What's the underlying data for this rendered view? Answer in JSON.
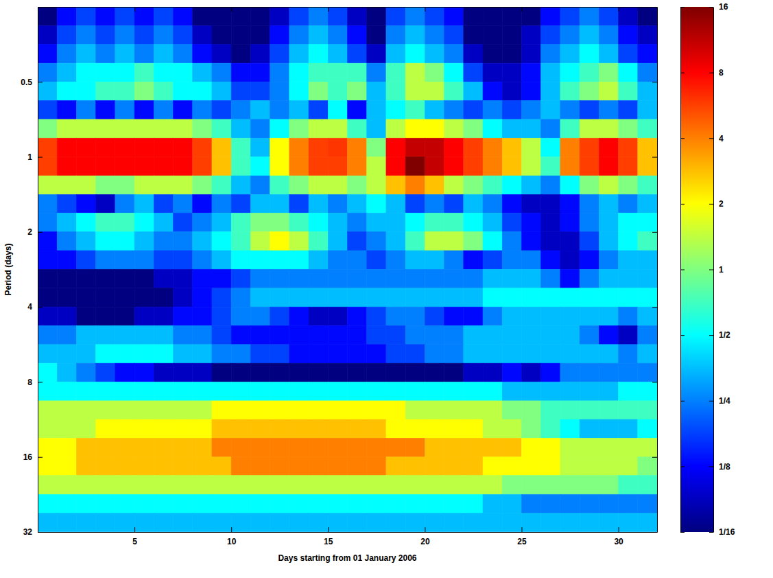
{
  "chart_data": {
    "type": "heatmap",
    "x_label": "Days starting from 01 January 2006",
    "y_label": "Period (days)",
    "log": "y",
    "xlim": [
      0,
      32
    ],
    "ylim": [
      0.25,
      32
    ],
    "xticks": [
      5,
      10,
      15,
      20,
      25,
      30
    ],
    "yticks": [
      0.5,
      1,
      2,
      4,
      8,
      16,
      32
    ],
    "x": [
      0.5,
      1.5,
      2.5,
      3.5,
      4.5,
      5.5,
      6.5,
      7.5,
      8.5,
      9.5,
      10.5,
      11.5,
      12.5,
      13.5,
      14.5,
      15.5,
      16.5,
      17.5,
      18.5,
      19.5,
      20.5,
      21.5,
      22.5,
      23.5,
      24.5,
      25.5,
      26.5,
      27.5,
      28.5,
      29.5,
      30.5,
      31.5
    ],
    "y": [
      0.273,
      0.324,
      0.386,
      0.459,
      0.545,
      0.648,
      0.771,
      0.917,
      1.09,
      1.3,
      1.54,
      1.83,
      2.18,
      2.59,
      3.08,
      3.67,
      4.36,
      5.19,
      6.17,
      7.34,
      8.72,
      10.4,
      12.3,
      14.7,
      17.4,
      20.7,
      24.7,
      29.3
    ],
    "values": [
      [
        0.06,
        0.13,
        0.18,
        0.13,
        0.18,
        0.13,
        0.18,
        0.13,
        0.06,
        0.06,
        0.06,
        0.06,
        0.09,
        0.18,
        0.25,
        0.18,
        0.09,
        0.06,
        0.18,
        0.25,
        0.18,
        0.13,
        0.06,
        0.06,
        0.06,
        0.06,
        0.13,
        0.18,
        0.25,
        0.18,
        0.09,
        0.06
      ],
      [
        0.09,
        0.18,
        0.25,
        0.18,
        0.25,
        0.18,
        0.25,
        0.18,
        0.09,
        0.06,
        0.06,
        0.06,
        0.13,
        0.25,
        0.35,
        0.25,
        0.13,
        0.06,
        0.25,
        0.35,
        0.25,
        0.18,
        0.06,
        0.06,
        0.06,
        0.09,
        0.18,
        0.25,
        0.35,
        0.25,
        0.13,
        0.09
      ],
      [
        0.13,
        0.25,
        0.35,
        0.25,
        0.35,
        0.25,
        0.35,
        0.25,
        0.13,
        0.09,
        0.06,
        0.09,
        0.18,
        0.35,
        0.5,
        0.35,
        0.18,
        0.09,
        0.35,
        0.5,
        0.35,
        0.25,
        0.09,
        0.06,
        0.06,
        0.09,
        0.25,
        0.35,
        0.5,
        0.35,
        0.18,
        0.13
      ],
      [
        0.25,
        0.35,
        0.5,
        0.5,
        0.5,
        0.7,
        0.5,
        0.5,
        0.35,
        0.25,
        0.13,
        0.13,
        0.25,
        0.5,
        0.7,
        0.7,
        0.7,
        0.25,
        0.7,
        1.4,
        1,
        0.5,
        0.18,
        0.09,
        0.09,
        0.13,
        0.35,
        0.5,
        0.7,
        1,
        0.5,
        0.25
      ],
      [
        0.35,
        0.5,
        0.5,
        0.7,
        0.7,
        1,
        0.7,
        0.5,
        0.5,
        0.35,
        0.18,
        0.18,
        0.25,
        0.5,
        1,
        0.7,
        1,
        0.35,
        0.7,
        1.4,
        1.4,
        0.7,
        0.35,
        0.13,
        0.09,
        0.13,
        0.35,
        0.7,
        1,
        1.4,
        0.7,
        0.35
      ],
      [
        0.18,
        0.13,
        0.25,
        0.13,
        0.25,
        0.13,
        0.25,
        0.13,
        0.25,
        0.18,
        0.25,
        0.35,
        0.25,
        0.35,
        0.18,
        0.5,
        0.13,
        0.35,
        0.5,
        0.7,
        0.35,
        0.25,
        0.18,
        0.25,
        0.18,
        0.25,
        0.35,
        0.25,
        0.18,
        0.25,
        0.18,
        0.35
      ],
      [
        1,
        1.4,
        1.4,
        1.4,
        1.4,
        1.4,
        1.4,
        1.4,
        1,
        0.7,
        0.35,
        0.25,
        0.5,
        1,
        1.4,
        1.4,
        0.7,
        0.35,
        1.4,
        2,
        2,
        1.4,
        1,
        0.5,
        0.35,
        0.35,
        0.25,
        0.7,
        1.4,
        1.4,
        1,
        0.7
      ],
      [
        5.7,
        8,
        8,
        8,
        8,
        8,
        8,
        8,
        5.7,
        2.8,
        0.7,
        0.35,
        2,
        4,
        5.7,
        6,
        4,
        1,
        8,
        11,
        11,
        8,
        5.7,
        4,
        2.8,
        1.4,
        0.5,
        4,
        5.7,
        8,
        5.7,
        2.8
      ],
      [
        5.7,
        8,
        8,
        8,
        8,
        8,
        8,
        8,
        5.7,
        2.8,
        0.7,
        0.5,
        2,
        4,
        5.7,
        5.7,
        4,
        1.4,
        8,
        16,
        11,
        8,
        5.7,
        4,
        2.8,
        1.4,
        0.7,
        4,
        5.7,
        8,
        5.7,
        2.8
      ],
      [
        1.4,
        1.4,
        1.4,
        1,
        1,
        1.4,
        1.4,
        1.4,
        1,
        0.7,
        0.35,
        0.25,
        0.7,
        1,
        1.4,
        1.4,
        1,
        1.4,
        2.8,
        4,
        2.8,
        1.4,
        1,
        0.7,
        0.5,
        0.35,
        0.25,
        0.5,
        1,
        1.4,
        1,
        0.7
      ],
      [
        0.25,
        0.18,
        0.13,
        0.09,
        0.25,
        0.35,
        0.18,
        0.25,
        0.13,
        0.25,
        0.18,
        0.35,
        0.35,
        0.18,
        0.35,
        0.25,
        0.35,
        0.5,
        0.35,
        0.18,
        0.25,
        0.18,
        0.35,
        0.25,
        0.13,
        0.09,
        0.09,
        0.13,
        0.25,
        0.35,
        0.25,
        0.35
      ],
      [
        0.25,
        0.35,
        0.5,
        0.7,
        0.7,
        0.5,
        0.35,
        0.18,
        0.25,
        0.35,
        0.7,
        1,
        1,
        0.7,
        0.5,
        0.35,
        0.25,
        0.35,
        0.35,
        0.5,
        0.7,
        0.7,
        0.5,
        0.35,
        0.18,
        0.13,
        0.09,
        0.13,
        0.25,
        0.35,
        0.5,
        0.5
      ],
      [
        0.13,
        0.25,
        0.35,
        0.5,
        0.5,
        0.35,
        0.25,
        0.25,
        0.35,
        0.5,
        0.7,
        1.4,
        2,
        1.4,
        0.7,
        0.35,
        0.18,
        0.25,
        0.35,
        0.7,
        1.4,
        1.4,
        1,
        0.5,
        0.25,
        0.13,
        0.09,
        0.09,
        0.18,
        0.35,
        0.5,
        0.7
      ],
      [
        0.13,
        0.13,
        0.18,
        0.25,
        0.25,
        0.25,
        0.18,
        0.18,
        0.25,
        0.35,
        0.5,
        0.5,
        0.5,
        0.5,
        0.35,
        0.25,
        0.25,
        0.18,
        0.25,
        0.35,
        0.35,
        0.25,
        0.13,
        0.18,
        0.25,
        0.25,
        0.13,
        0.09,
        0.13,
        0.25,
        0.35,
        0.35
      ],
      [
        0.06,
        0.06,
        0.06,
        0.06,
        0.06,
        0.06,
        0.09,
        0.09,
        0.13,
        0.13,
        0.18,
        0.25,
        0.25,
        0.25,
        0.25,
        0.25,
        0.25,
        0.25,
        0.25,
        0.25,
        0.25,
        0.25,
        0.25,
        0.35,
        0.35,
        0.35,
        0.25,
        0.13,
        0.25,
        0.35,
        0.35,
        0.35
      ],
      [
        0.06,
        0.06,
        0.06,
        0.06,
        0.06,
        0.06,
        0.06,
        0.09,
        0.13,
        0.18,
        0.25,
        0.35,
        0.35,
        0.35,
        0.35,
        0.35,
        0.35,
        0.35,
        0.35,
        0.35,
        0.35,
        0.35,
        0.35,
        0.5,
        0.5,
        0.5,
        0.5,
        0.5,
        0.5,
        0.5,
        0.5,
        0.5
      ],
      [
        0.09,
        0.09,
        0.06,
        0.06,
        0.06,
        0.09,
        0.09,
        0.13,
        0.13,
        0.18,
        0.25,
        0.25,
        0.18,
        0.13,
        0.09,
        0.09,
        0.13,
        0.18,
        0.25,
        0.25,
        0.18,
        0.13,
        0.13,
        0.25,
        0.35,
        0.35,
        0.35,
        0.35,
        0.35,
        0.35,
        0.25,
        0.35
      ],
      [
        0.25,
        0.25,
        0.35,
        0.35,
        0.35,
        0.35,
        0.35,
        0.25,
        0.25,
        0.18,
        0.13,
        0.13,
        0.13,
        0.13,
        0.13,
        0.13,
        0.13,
        0.18,
        0.18,
        0.25,
        0.25,
        0.25,
        0.35,
        0.35,
        0.35,
        0.35,
        0.35,
        0.35,
        0.25,
        0.13,
        0.09,
        0.25
      ],
      [
        0.35,
        0.35,
        0.35,
        0.5,
        0.5,
        0.5,
        0.5,
        0.35,
        0.35,
        0.25,
        0.25,
        0.18,
        0.18,
        0.13,
        0.13,
        0.13,
        0.13,
        0.13,
        0.18,
        0.18,
        0.25,
        0.25,
        0.35,
        0.35,
        0.35,
        0.35,
        0.35,
        0.35,
        0.35,
        0.35,
        0.25,
        0.35
      ],
      [
        0.5,
        0.35,
        0.25,
        0.18,
        0.13,
        0.13,
        0.09,
        0.09,
        0.09,
        0.06,
        0.06,
        0.06,
        0.06,
        0.06,
        0.06,
        0.06,
        0.06,
        0.06,
        0.06,
        0.06,
        0.06,
        0.06,
        0.09,
        0.09,
        0.13,
        0.09,
        0.13,
        0.25,
        0.25,
        0.25,
        0.25,
        0.25
      ],
      [
        0.5,
        0.5,
        0.5,
        0.5,
        0.5,
        0.5,
        0.5,
        0.5,
        0.5,
        0.5,
        0.5,
        0.5,
        0.5,
        0.5,
        0.5,
        0.5,
        0.5,
        0.5,
        0.5,
        0.5,
        0.5,
        0.5,
        0.5,
        0.5,
        0.35,
        0.35,
        0.35,
        0.35,
        0.35,
        0.35,
        0.5,
        0.5
      ],
      [
        1.4,
        1.4,
        1.4,
        1.4,
        1.4,
        1.4,
        1.4,
        1.4,
        1.4,
        2,
        2,
        2,
        2,
        2,
        2,
        2,
        2,
        2,
        2,
        1.4,
        1.4,
        1.4,
        1.4,
        1.4,
        1,
        1,
        0.7,
        0.7,
        0.7,
        0.7,
        0.7,
        0.7
      ],
      [
        1.4,
        1.4,
        1.4,
        2,
        2,
        2,
        2,
        2,
        2,
        2.8,
        2.8,
        2.8,
        2.8,
        2.8,
        2.8,
        2.8,
        2.8,
        2.8,
        2,
        2,
        2,
        2,
        2,
        1.4,
        1.4,
        1,
        0.7,
        0.5,
        0.35,
        0.35,
        0.35,
        0.5
      ],
      [
        2,
        2,
        2.8,
        2.8,
        2.8,
        2.8,
        2.8,
        2.8,
        2.8,
        4,
        4,
        4,
        4,
        4,
        4,
        4,
        4,
        4,
        4,
        4,
        2.8,
        2.8,
        2.8,
        2.8,
        2.8,
        2,
        2,
        1.4,
        1.4,
        1.4,
        1.4,
        1.4
      ],
      [
        2,
        2,
        2.8,
        2.8,
        2.8,
        2.8,
        2.8,
        2.8,
        2.8,
        2.8,
        4,
        4,
        4,
        4,
        4,
        4,
        4,
        4,
        2.8,
        2.8,
        2.8,
        2.8,
        2.8,
        2,
        2,
        2,
        2,
        1.4,
        1.4,
        1.4,
        1.4,
        1
      ],
      [
        1.4,
        1.4,
        1.4,
        1.4,
        1.4,
        1.4,
        1.4,
        1.4,
        1.4,
        1.4,
        1.4,
        1.4,
        1.4,
        1.4,
        1.4,
        1.4,
        1.4,
        1.4,
        1.4,
        1.4,
        1.4,
        1.4,
        1.4,
        1.4,
        1,
        1,
        1,
        1,
        1,
        1,
        0.7,
        0.7
      ],
      [
        0.5,
        0.5,
        0.5,
        0.5,
        0.5,
        0.5,
        0.5,
        0.5,
        0.5,
        0.5,
        0.5,
        0.5,
        0.5,
        0.5,
        0.5,
        0.5,
        0.5,
        0.5,
        0.5,
        0.5,
        0.5,
        0.5,
        0.5,
        0.35,
        0.35,
        0.25,
        0.25,
        0.25,
        0.25,
        0.25,
        0.25,
        0.25
      ],
      [
        0.35,
        0.35,
        0.35,
        0.35,
        0.35,
        0.35,
        0.35,
        0.35,
        0.35,
        0.35,
        0.35,
        0.35,
        0.35,
        0.35,
        0.35,
        0.35,
        0.35,
        0.35,
        0.35,
        0.35,
        0.35,
        0.35,
        0.35,
        0.35,
        0.35,
        0.35,
        0.35,
        0.35,
        0.35,
        0.35,
        0.35,
        0.35
      ]
    ],
    "colorbar": {
      "range": [
        0.0625,
        16
      ],
      "ticks": [
        {
          "value": 0.0625,
          "label": "1/16"
        },
        {
          "value": 0.125,
          "label": "1/8"
        },
        {
          "value": 0.25,
          "label": "1/4"
        },
        {
          "value": 0.5,
          "label": "1/2"
        },
        1,
        2,
        4,
        8,
        16
      ]
    }
  }
}
